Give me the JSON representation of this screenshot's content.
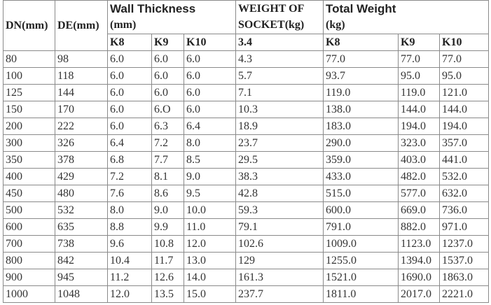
{
  "headers": {
    "dn": "DN(mm)",
    "de": "DE(mm)",
    "wall_thickness": "Wall Thickness",
    "wall_unit": "(mm)",
    "socket_line1": "WEIGHT OF",
    "socket_line2": "SOCKET(kg)",
    "total_weight": "Total Weight",
    "total_unit": "(kg)",
    "sub": [
      "K8",
      "K9",
      "K10",
      "3.4",
      "K8",
      "K9",
      "K10"
    ]
  },
  "rows": [
    [
      "80",
      "98",
      "6.0",
      "6.0",
      "6.0",
      "4.3",
      "77.0",
      "77.0",
      "77.0"
    ],
    [
      "100",
      "118",
      "6.0",
      "6.0",
      "6.0",
      "5.7",
      "93.7",
      "95.0",
      "95.0"
    ],
    [
      "125",
      "144",
      "6.0",
      "6.0",
      "6.0",
      "7.1",
      "119.0",
      "119.0",
      "121.0"
    ],
    [
      "150",
      "170",
      "6.0",
      "6.O",
      "6.0",
      "10.3",
      "138.0",
      "144.0",
      "144.0"
    ],
    [
      "200",
      "222",
      "6.0",
      "6.3",
      "6.4",
      "18.9",
      "183.0",
      "194.0",
      "194.0"
    ],
    [
      "300",
      "326",
      "6.4",
      "7.2",
      "8.0",
      "23.7",
      "290.0",
      "323.0",
      "357.0"
    ],
    [
      "350",
      "378",
      "6.8",
      "7.7",
      "8.5",
      "29.5",
      "359.0",
      "403.0",
      "441.0"
    ],
    [
      "400",
      "429",
      "7.2",
      "8.1",
      "9.0",
      "38.3",
      "433.0",
      "482.0",
      "532.0"
    ],
    [
      "450",
      "480",
      "7.6",
      "8.6",
      "9.5",
      "42.8",
      "515.0",
      "577.0",
      "632.0"
    ],
    [
      "500",
      "532",
      "8.0",
      "9.0",
      "10.0",
      "59.3",
      "600.0",
      "669.0",
      "736.0"
    ],
    [
      "600",
      "635",
      "8.8",
      "9.9",
      "11.0",
      "79.1",
      "791.0",
      "882.0",
      "971.0"
    ],
    [
      "700",
      "738",
      "9.6",
      "10.8",
      "12.0",
      "102.6",
      "1009.0",
      "1123.0",
      "1237.0"
    ],
    [
      "800",
      "842",
      "10.4",
      "11.7",
      "13.0",
      "129",
      "1255.0",
      "1394.0",
      "1537.0"
    ],
    [
      "900",
      "945",
      "11.2",
      "12.6",
      "14.0",
      "161.3",
      "1521.0",
      "1690.0",
      "1863.0"
    ],
    [
      "1000",
      "1048",
      "12.0",
      "13.5",
      "15.0",
      "237.7",
      "1811.0",
      "2017.0",
      "2221.0"
    ]
  ]
}
